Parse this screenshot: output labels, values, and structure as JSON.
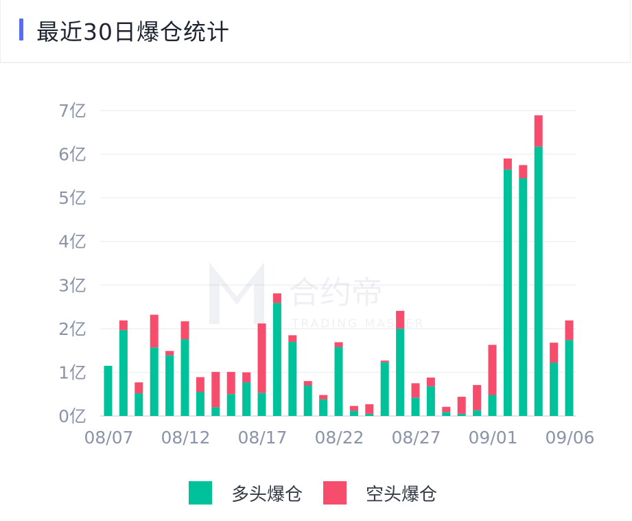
{
  "header": {
    "title": "最近30日爆仓统计"
  },
  "watermark": {
    "brand_cn": "合约帝",
    "brand_en": "TRADING MASTER"
  },
  "colors": {
    "long": "#00c29a",
    "short": "#f54d6b",
    "accent": "#5b6cf2",
    "axis_text": "#8a93a8",
    "grid": "#eef0f4"
  },
  "chart_data": {
    "type": "bar",
    "stacked": true,
    "title": "最近30日爆仓统计",
    "unit": "亿",
    "ylim": [
      0,
      7
    ],
    "yticks": [
      "0亿",
      "1亿",
      "2亿",
      "3亿",
      "4亿",
      "5亿",
      "6亿",
      "7亿"
    ],
    "categories": [
      "08/07",
      "08/08",
      "08/09",
      "08/10",
      "08/11",
      "08/12",
      "08/13",
      "08/14",
      "08/15",
      "08/16",
      "08/17",
      "08/18",
      "08/19",
      "08/20",
      "08/21",
      "08/22",
      "08/23",
      "08/24",
      "08/25",
      "08/26",
      "08/27",
      "08/28",
      "08/29",
      "08/30",
      "08/31",
      "09/01",
      "09/02",
      "09/03",
      "09/04",
      "09/05",
      "09/06"
    ],
    "xtick_labels": [
      "08/07",
      "08/12",
      "08/17",
      "08/22",
      "08/27",
      "09/01",
      "09/06"
    ],
    "legend_position": "bottom",
    "series": [
      {
        "name": "多头爆仓",
        "color": "#00c29a",
        "values": [
          1.15,
          1.97,
          0.52,
          1.57,
          1.39,
          1.76,
          0.55,
          0.2,
          0.5,
          0.77,
          0.53,
          2.59,
          1.7,
          0.7,
          0.38,
          1.58,
          0.12,
          0.05,
          1.23,
          2.0,
          0.42,
          0.68,
          0.09,
          0.05,
          0.13,
          0.48,
          5.65,
          5.45,
          6.17,
          1.22,
          1.74
        ]
      },
      {
        "name": "空头爆仓",
        "color": "#f54d6b",
        "values": [
          0.0,
          0.22,
          0.25,
          0.75,
          0.1,
          0.41,
          0.34,
          0.81,
          0.51,
          0.23,
          1.59,
          0.22,
          0.15,
          0.1,
          0.1,
          0.11,
          0.11,
          0.22,
          0.04,
          0.41,
          0.33,
          0.2,
          0.12,
          0.39,
          0.58,
          1.15,
          0.25,
          0.3,
          0.72,
          0.46,
          0.45
        ]
      }
    ]
  }
}
